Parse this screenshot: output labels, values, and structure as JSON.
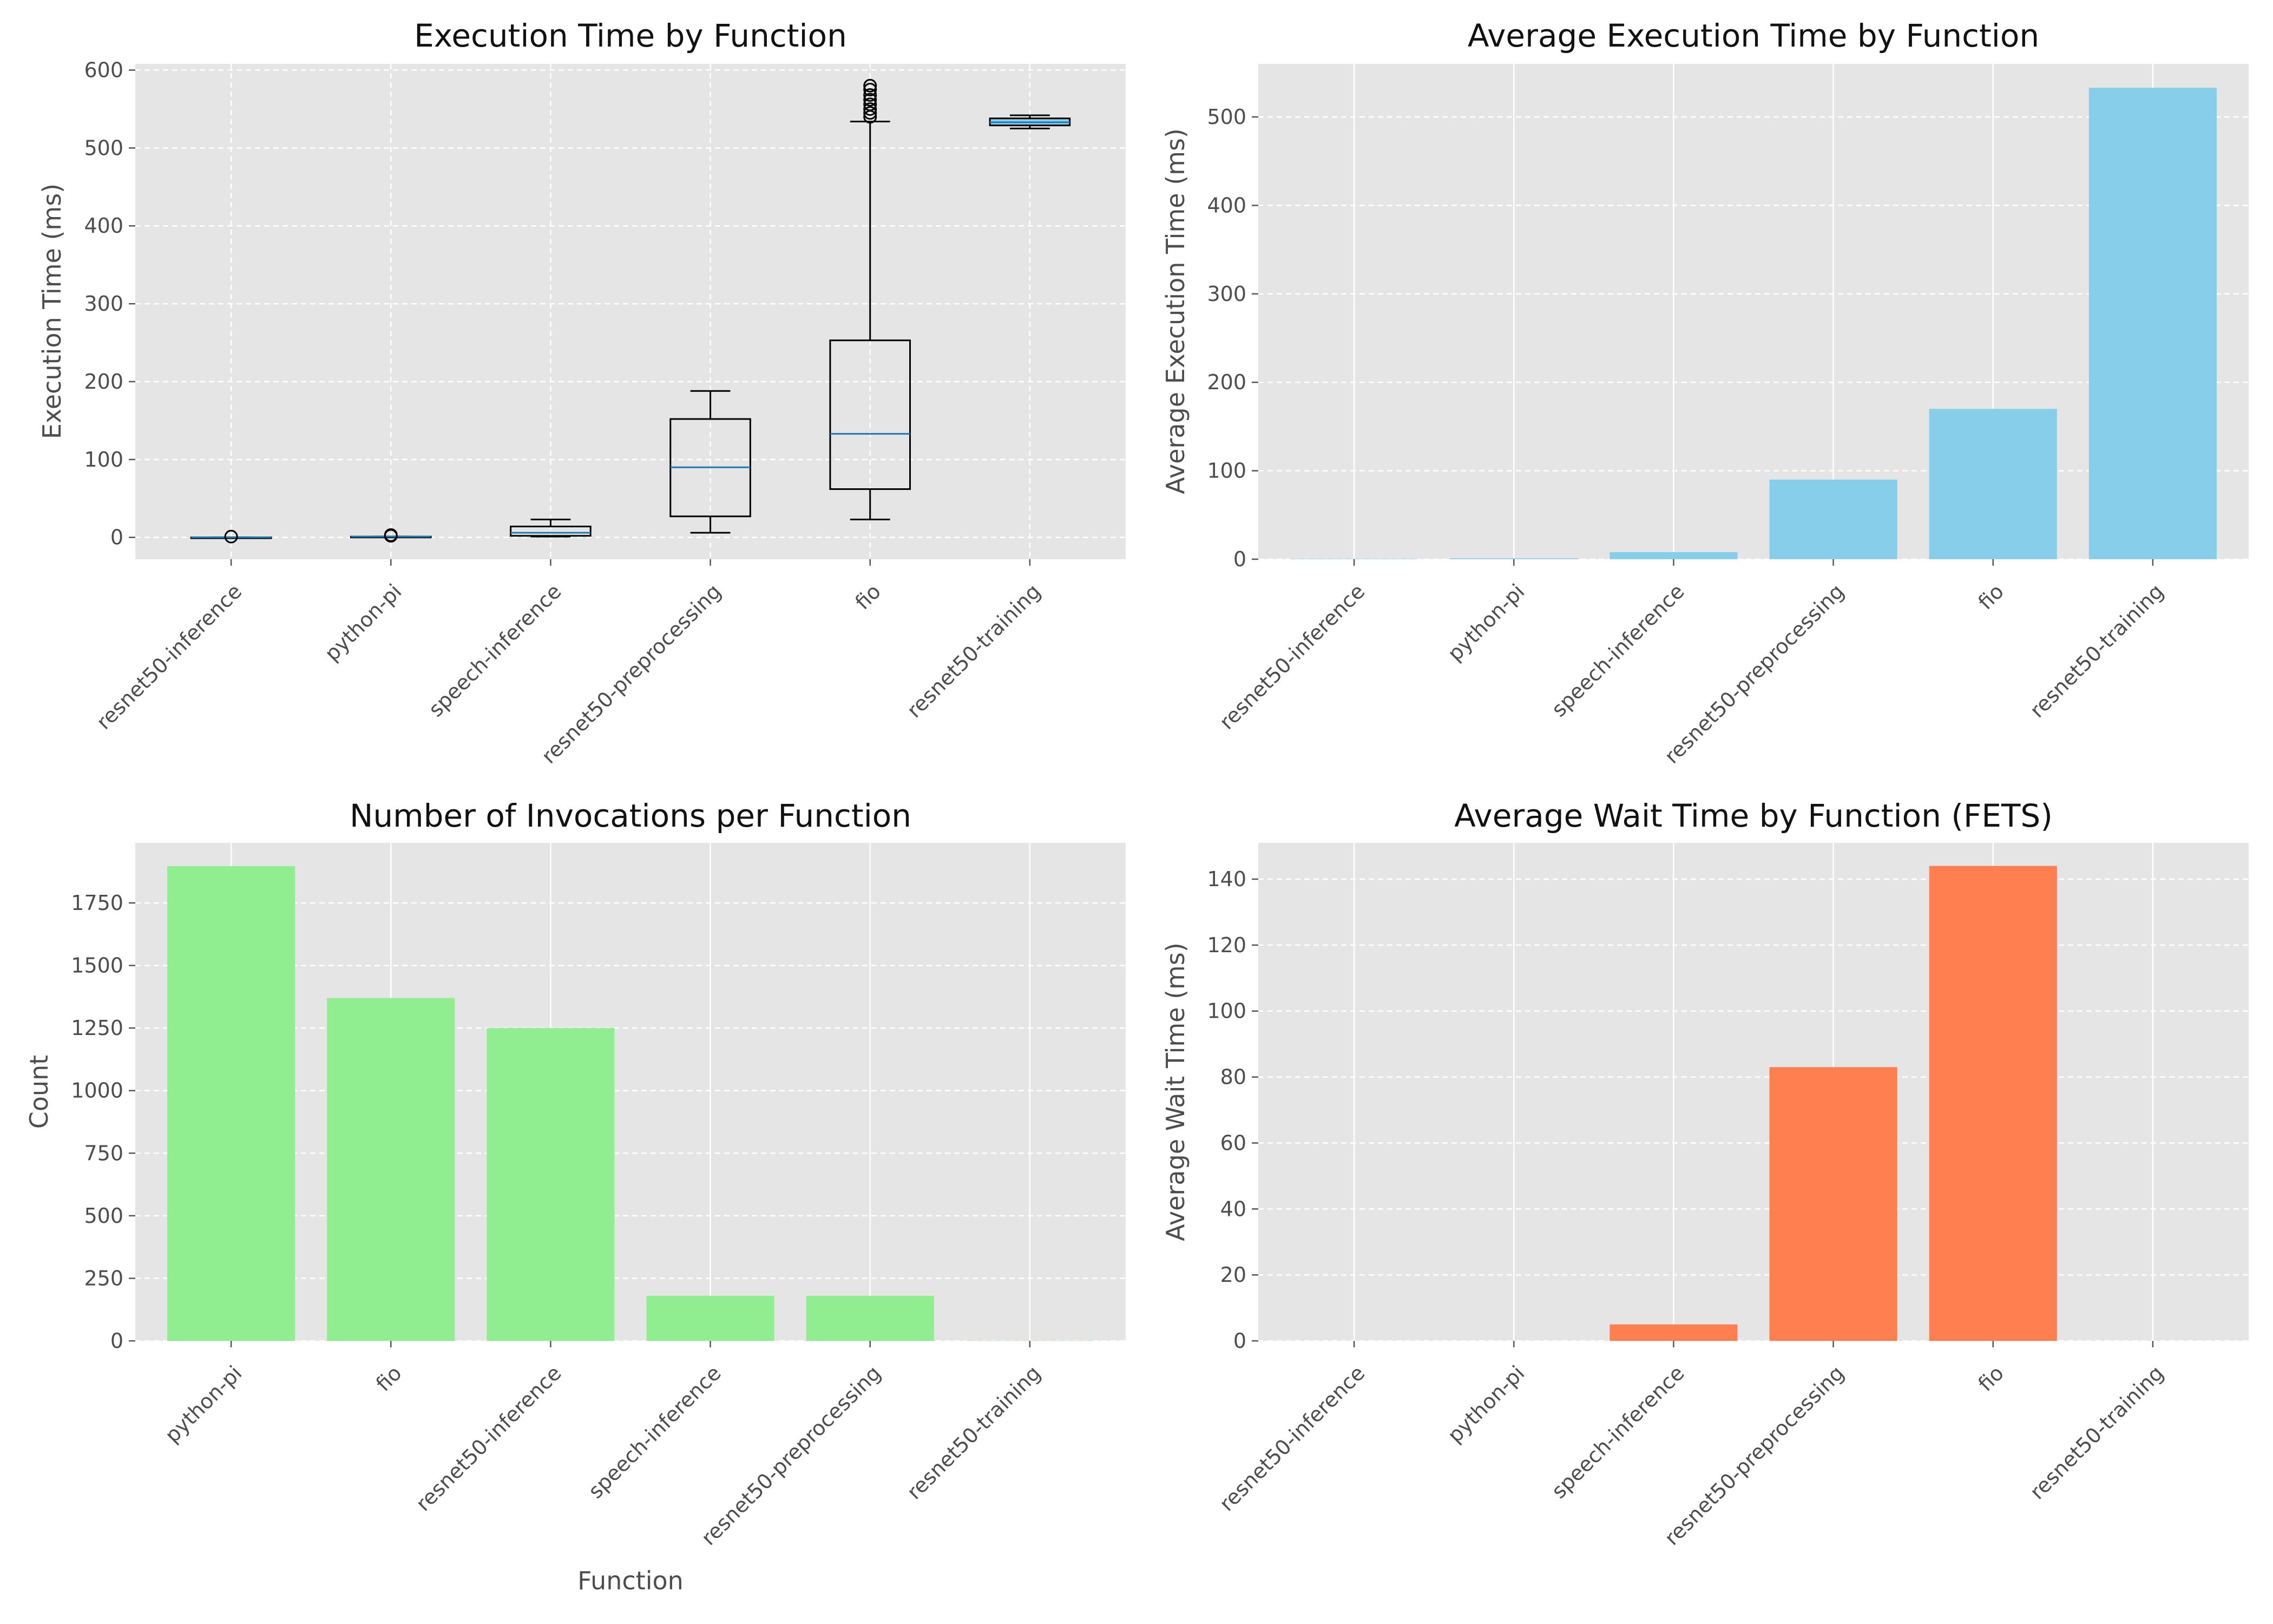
{
  "colors": {
    "panel_bg": "#E5E5E5",
    "grid": "#FFFFFF",
    "box_edge": "#000000",
    "median": "#1F77B4",
    "exec_bar": "#87CEEB",
    "count_bar": "#90EE90",
    "wait_bar": "#FF7F50"
  },
  "chart_data": [
    {
      "type": "box",
      "title": "Execution Time by Function",
      "xlabel": "",
      "ylabel": "Execution Time (ms)",
      "ylim": [
        -28,
        608
      ],
      "yticks": [
        0,
        100,
        200,
        300,
        400,
        500,
        600
      ],
      "grid": "dashed",
      "categories": [
        "resnet50-inference",
        "python-pi",
        "speech-inference",
        "resnet50-preprocessing",
        "fio",
        "resnet50-training"
      ],
      "boxes": [
        {
          "whisker_low": 0,
          "q1": 0,
          "median": 0,
          "q3": 0,
          "whisker_high": 0,
          "outliers": [
            1
          ]
        },
        {
          "whisker_low": 1,
          "q1": 1,
          "median": 1,
          "q3": 1,
          "whisker_high": 1,
          "outliers": [
            2,
            3
          ]
        },
        {
          "whisker_low": 1,
          "q1": 2,
          "median": 6,
          "q3": 14,
          "whisker_high": 23,
          "outliers": []
        },
        {
          "whisker_low": 6,
          "q1": 27,
          "median": 90,
          "q3": 152,
          "whisker_high": 188,
          "outliers": []
        },
        {
          "whisker_low": 23,
          "q1": 62,
          "median": 133,
          "q3": 253,
          "whisker_high": 534,
          "outliers": [
            540,
            545,
            550,
            556,
            562,
            568,
            575,
            580
          ]
        },
        {
          "whisker_low": 525,
          "q1": 529,
          "median": 533,
          "q3": 538,
          "whisker_high": 542,
          "outliers": []
        }
      ]
    },
    {
      "type": "bar",
      "title": "Average Execution Time by Function",
      "xlabel": "",
      "ylabel": "Average Execution Time (ms)",
      "ylim": [
        0,
        560
      ],
      "yticks": [
        0,
        100,
        200,
        300,
        400,
        500
      ],
      "grid": "dashed-y",
      "categories": [
        "resnet50-inference",
        "python-pi",
        "speech-inference",
        "resnet50-preprocessing",
        "fio",
        "resnet50-training"
      ],
      "values": [
        0.4,
        1,
        8,
        90,
        170,
        533
      ],
      "color": "exec_bar"
    },
    {
      "type": "bar",
      "title": "Number of Invocations per Function",
      "xlabel": "Function",
      "ylabel": "Count",
      "ylim": [
        0,
        1990
      ],
      "yticks": [
        0,
        250,
        500,
        750,
        1000,
        1250,
        1500,
        1750
      ],
      "grid": "dashed-y",
      "categories": [
        "python-pi",
        "fio",
        "resnet50-inference",
        "speech-inference",
        "resnet50-preprocessing",
        "resnet50-training"
      ],
      "values": [
        1897,
        1370,
        1250,
        180,
        180,
        1
      ],
      "color": "count_bar"
    },
    {
      "type": "bar",
      "title": "Average Wait Time by Function (FETS)",
      "xlabel": "",
      "ylabel": "Average Wait Time (ms)",
      "ylim": [
        0,
        151
      ],
      "yticks": [
        0,
        20,
        40,
        60,
        80,
        100,
        120,
        140
      ],
      "grid": "dashed-y",
      "categories": [
        "resnet50-inference",
        "python-pi",
        "speech-inference",
        "resnet50-preprocessing",
        "fio",
        "resnet50-training"
      ],
      "values": [
        0,
        0,
        5,
        83,
        144,
        0
      ],
      "color": "wait_bar"
    }
  ]
}
